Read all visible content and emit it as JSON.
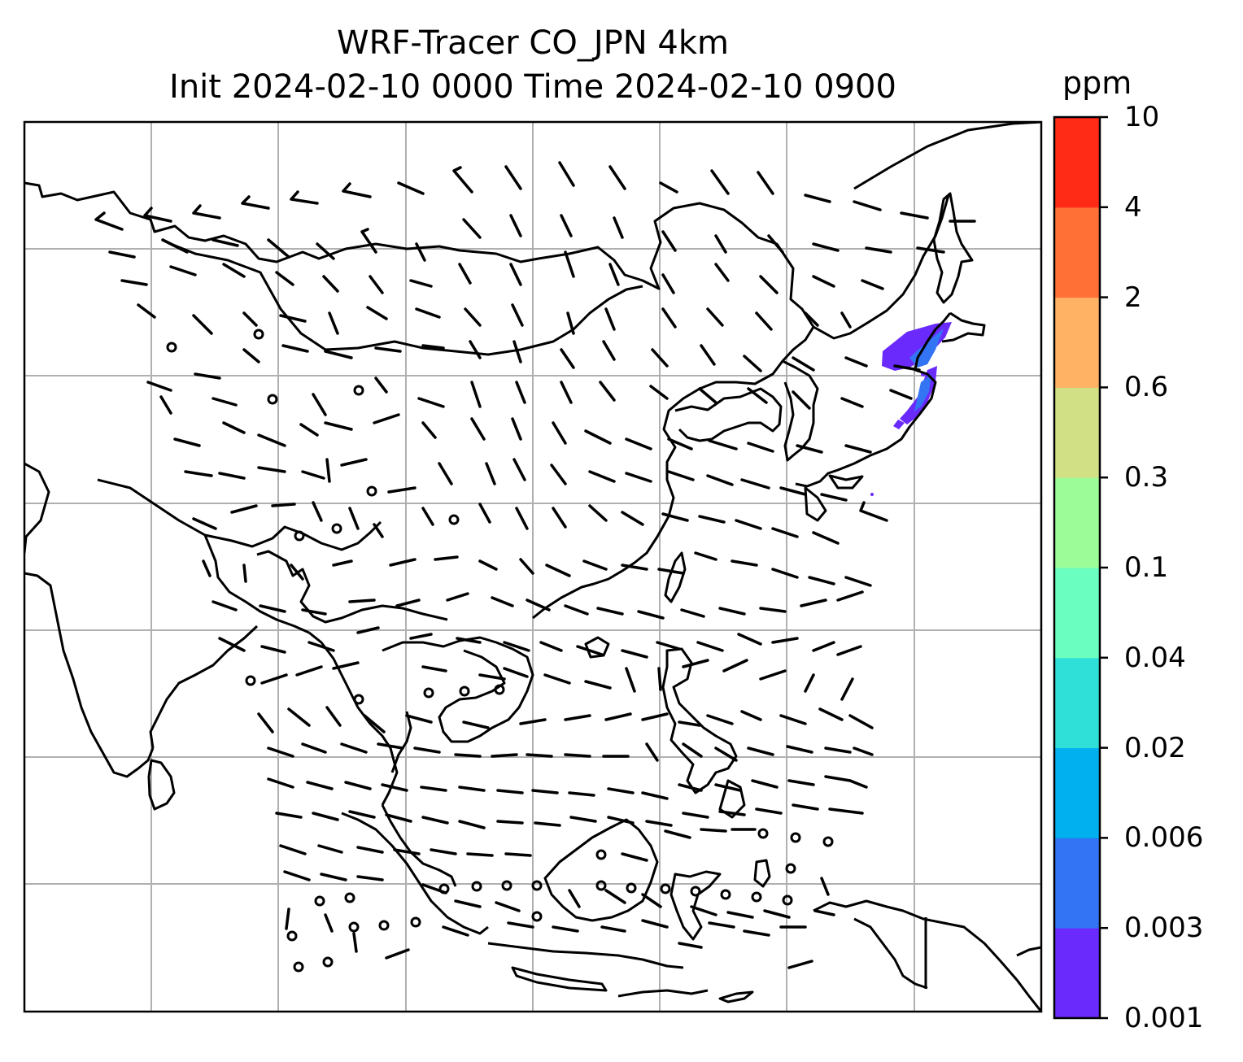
{
  "title": {
    "line1": "WRF-Tracer CO_JPN 4km",
    "line2": "Init 2024-02-10 0000 Time 2024-02-10 0900"
  },
  "colorbar": {
    "unit": "ppm",
    "labels": [
      "0.001",
      "0.003",
      "0.006",
      "0.02",
      "0.04",
      "0.1",
      "0.3",
      "0.6",
      "2",
      "4",
      "10"
    ],
    "colors": [
      "#6a2afc",
      "#3374f5",
      "#00b0ef",
      "#2ee0d8",
      "#6affc0",
      "#9cfc98",
      "#d2e085",
      "#ffb264",
      "#ff7037",
      "#ff2b16"
    ]
  },
  "map": {
    "gridlines": true,
    "tracer_plume_region": "Japan east coast (Tohoku)",
    "wind_barbs": true
  },
  "chart_data": {
    "type": "heatmap",
    "title": "WRF-Tracer CO_JPN 4km",
    "subtitle": "Init 2024-02-10 0000 Time 2024-02-10 0900",
    "colorbar_unit": "ppm",
    "levels": [
      0.001,
      0.003,
      0.006,
      0.02,
      0.04,
      0.1,
      0.3,
      0.6,
      2,
      4,
      10
    ],
    "plume_levels_present": [
      0.001,
      0.003,
      0.006
    ]
  }
}
